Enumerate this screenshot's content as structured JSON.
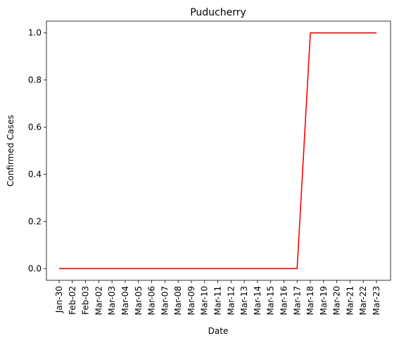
{
  "chart_data": {
    "type": "line",
    "title": "Puducherry",
    "xlabel": "Date",
    "ylabel": "Confirmed Cases",
    "categories": [
      "Jan-30",
      "Feb-02",
      "Feb-03",
      "Mar-02",
      "Mar-03",
      "Mar-04",
      "Mar-05",
      "Mar-06",
      "Mar-07",
      "Mar-08",
      "Mar-09",
      "Mar-10",
      "Mar-11",
      "Mar-12",
      "Mar-13",
      "Mar-14",
      "Mar-15",
      "Mar-16",
      "Mar-17",
      "Mar-18",
      "Mar-19",
      "Mar-20",
      "Mar-21",
      "Mar-22",
      "Mar-23"
    ],
    "series": [
      {
        "values": [
          0,
          0,
          0,
          0,
          0,
          0,
          0,
          0,
          0,
          0,
          0,
          0,
          0,
          0,
          0,
          0,
          0,
          0,
          0,
          1,
          1,
          1,
          1,
          1,
          1
        ],
        "color": "#ff0000"
      }
    ],
    "ylim": [
      -0.05,
      1.05
    ],
    "yticks": [
      0.0,
      0.2,
      0.4,
      0.6,
      0.8,
      1.0
    ],
    "ytick_labels": [
      "0.0",
      "0.2",
      "0.4",
      "0.6",
      "0.8",
      "1.0"
    ],
    "grid": false,
    "legend": "none"
  }
}
